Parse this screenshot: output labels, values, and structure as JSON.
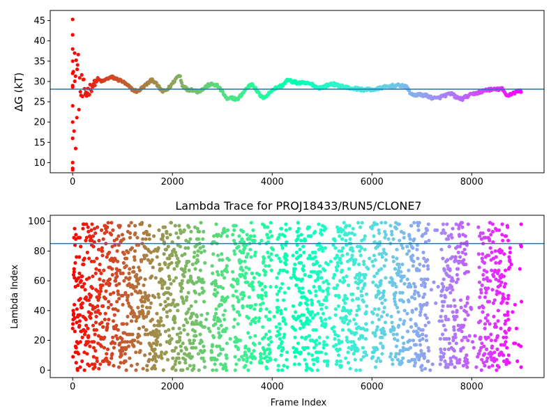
{
  "chart_data": [
    {
      "type": "scatter",
      "title": "",
      "xlabel": "",
      "ylabel": "ΔG (kT)",
      "xlim": [
        -450,
        9450
      ],
      "ylim": [
        7.5,
        47.5
      ],
      "xticks": [
        0,
        2000,
        4000,
        6000,
        8000
      ],
      "yticks": [
        10,
        15,
        20,
        25,
        30,
        35,
        40,
        45
      ],
      "hline": {
        "value": 28.1,
        "color": "#1f77b4"
      },
      "colormap": "rainbow (red at frame 0 → violet at final frame)",
      "n_frames": 9000,
      "grid": false,
      "series": [
        {
          "x": [
            0,
            50,
            100,
            150,
            200,
            300,
            400,
            500,
            600,
            700,
            800,
            900,
            1000,
            1100,
            1200,
            1300,
            1400,
            1500,
            1600,
            1700,
            1800,
            1900,
            2000,
            2100,
            2150,
            2200,
            2300,
            2400,
            2500,
            2600,
            2700,
            2800,
            2900,
            3000,
            3100,
            3200,
            3300,
            3400,
            3500,
            3600,
            3700,
            3800,
            3900,
            4000,
            4100,
            4200,
            4300,
            4400,
            4500,
            4600,
            4700,
            4800,
            4900,
            5000,
            5100,
            5200,
            5300,
            5400,
            5500,
            5600,
            5700,
            5800,
            5900,
            6000,
            6100,
            6200,
            6300,
            6400,
            6500,
            6600,
            6700,
            6800,
            6900,
            7000,
            7100,
            7200,
            7300,
            7400,
            7500,
            7600,
            7700,
            7800,
            7900,
            8000,
            8100,
            8200,
            8300,
            8400,
            8500,
            8600,
            8700,
            8800,
            8900,
            9000
          ],
          "y": [
            28.0,
            29.0,
            30.0,
            28.0,
            27.0,
            27.5,
            29.0,
            30.5,
            30.0,
            30.8,
            31.0,
            30.5,
            30.0,
            29.0,
            28.0,
            27.5,
            28.5,
            29.5,
            30.5,
            29.0,
            27.5,
            28.0,
            29.5,
            31.2,
            31.5,
            29.0,
            28.0,
            28.0,
            27.5,
            28.0,
            29.0,
            29.3,
            29.0,
            27.5,
            25.5,
            26.0,
            25.5,
            27.0,
            28.5,
            29.5,
            27.5,
            26.0,
            26.5,
            28.0,
            28.5,
            29.0,
            30.3,
            30.0,
            29.7,
            29.6,
            29.5,
            29.3,
            28.5,
            28.5,
            29.0,
            29.5,
            29.0,
            28.8,
            28.5,
            28.3,
            28.2,
            28.0,
            28.0,
            28.0,
            28.1,
            28.5,
            28.7,
            28.9,
            29.0,
            29.0,
            28.5,
            26.7,
            26.7,
            26.7,
            26.5,
            26.0,
            25.8,
            26.3,
            26.7,
            27.0,
            26.0,
            25.7,
            26.3,
            26.8,
            27.2,
            27.5,
            28.0,
            28.0,
            28.0,
            28.3,
            26.5,
            27.0,
            27.5,
            27.7
          ]
        }
      ]
    },
    {
      "type": "scatter",
      "title": "Lambda Trace for PROJ18433/RUN5/CLONE7",
      "xlabel": "Frame Index",
      "ylabel": "Lambda Index",
      "xlim": [
        -450,
        9450
      ],
      "ylim": [
        -5,
        104
      ],
      "xticks": [
        0,
        2000,
        4000,
        6000,
        8000
      ],
      "yticks": [
        0,
        20,
        40,
        60,
        80,
        100
      ],
      "hline": {
        "value": 85,
        "color": "#1f77b4"
      },
      "colormap": "rainbow (red at frame 0 → violet at final frame)",
      "n_frames": 9000,
      "lambda_range": [
        0,
        99
      ],
      "grid": false
    }
  ]
}
